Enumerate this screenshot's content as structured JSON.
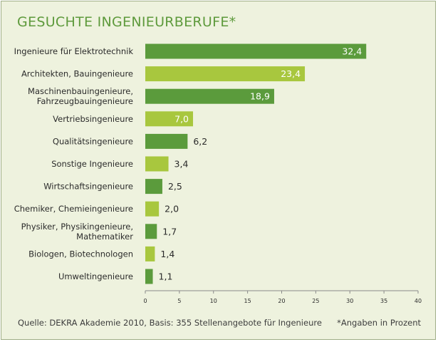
{
  "chart_data": {
    "type": "bar",
    "orientation": "horizontal",
    "title": "GESUCHTE INGENIEURBERUFE*",
    "categories": [
      [
        "Ingenieure für Elektrotechnik"
      ],
      [
        "Architekten, Bauingenieure"
      ],
      [
        "Maschinenbauingenieure,",
        "Fahrzeugbauingenieure"
      ],
      [
        "Vertriebsingenieure"
      ],
      [
        "Qualitätsingenieure"
      ],
      [
        "Sonstige Ingenieure"
      ],
      [
        "Wirtschaftsingenieure"
      ],
      [
        "Chemiker, Chemieingenieure"
      ],
      [
        "Physiker, Physikingenieure,",
        "Mathematiker"
      ],
      [
        "Biologen, Biotechnologen"
      ],
      [
        "Umweltingenieure"
      ]
    ],
    "values": [
      32.4,
      23.4,
      18.9,
      7.0,
      6.2,
      3.4,
      2.5,
      2.0,
      1.7,
      1.4,
      1.1
    ],
    "value_labels": [
      "32,4",
      "23,4",
      "18,9",
      "7,0",
      "6,2",
      "3,4",
      "2,5",
      "2,0",
      "1,7",
      "1,4",
      "1,1"
    ],
    "bar_colors": [
      "#5b9b3c",
      "#a8c73e",
      "#5b9b3c",
      "#a8c73e",
      "#5b9b3c",
      "#a8c73e",
      "#5b9b3c",
      "#a8c73e",
      "#5b9b3c",
      "#a8c73e",
      "#5b9b3c"
    ],
    "xlim": [
      0,
      40
    ],
    "xticks": [
      0,
      5,
      10,
      15,
      20,
      25,
      30,
      35,
      40
    ],
    "xlabel": "",
    "ylabel": "",
    "grid": false,
    "legend": "none"
  },
  "colors": {
    "background": "#eef2de",
    "title": "#5e9a3c",
    "dark_bar": "#5b9b3c",
    "light_bar": "#a8c73e",
    "axis": "#8a8a8a"
  },
  "footer": {
    "source": "Quelle: DEKRA Akademie 2010, Basis: 355 Stellenangebote für Ingenieure",
    "note": "*Angaben in Prozent"
  }
}
